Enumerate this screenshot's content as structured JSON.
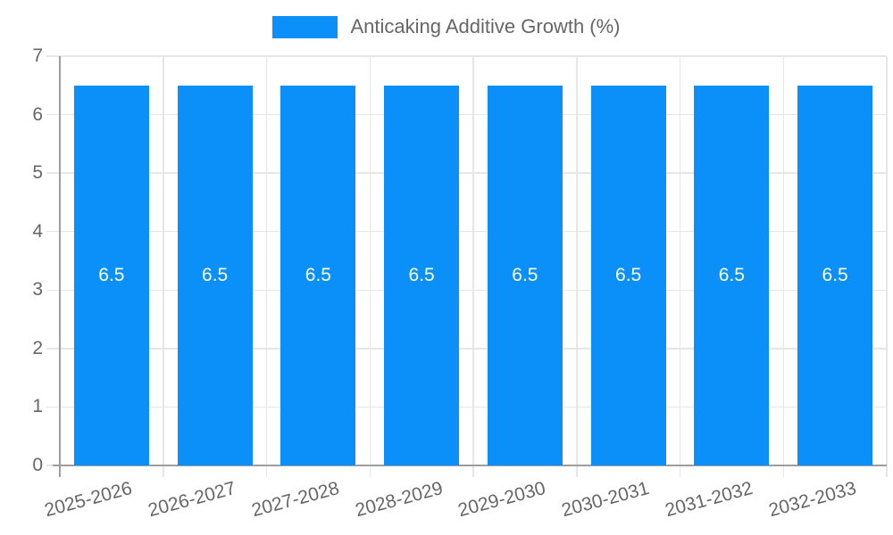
{
  "legend": {
    "label": "Anticaking Additive Growth (%)"
  },
  "colors": {
    "bar": "#0a90f8",
    "bar_label": "#ffffff",
    "legend_text": "#666666",
    "axis_text": "#666666",
    "grid": "#e6e6e6",
    "axis_line": "#9e9e9e"
  },
  "chart_data": {
    "type": "bar",
    "title": "",
    "legend_entries": [
      "Anticaking Additive Growth (%)"
    ],
    "legend_position": "top",
    "categories": [
      "2025-2026",
      "2026-2027",
      "2027-2028",
      "2028-2029",
      "2029-2030",
      "2030-2031",
      "2031-2032",
      "2032-2033"
    ],
    "values": [
      6.5,
      6.5,
      6.5,
      6.5,
      6.5,
      6.5,
      6.5,
      6.5
    ],
    "bar_value_labels": [
      "6.5",
      "6.5",
      "6.5",
      "6.5",
      "6.5",
      "6.5",
      "6.5",
      "6.5"
    ],
    "xlabel": "",
    "ylabel": "",
    "ylim": [
      0,
      7
    ],
    "yticks": [
      0,
      1,
      2,
      3,
      4,
      5,
      6,
      7
    ],
    "grid": true
  }
}
